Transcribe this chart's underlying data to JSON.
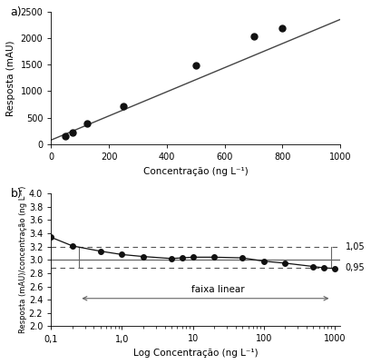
{
  "panel_a": {
    "x_data": [
      50,
      75,
      125,
      250,
      500,
      700,
      800
    ],
    "y_data": [
      150,
      220,
      390,
      720,
      1490,
      2030,
      2190
    ],
    "fit_x": [
      0,
      1000
    ],
    "fit_y": [
      80,
      2350
    ],
    "xlabel": "Concentração (ng L⁻¹)",
    "ylabel": "Resposta (mAU)",
    "xlim": [
      0,
      1000
    ],
    "ylim": [
      0,
      2500
    ],
    "xticks": [
      0,
      200,
      400,
      600,
      800,
      1000
    ],
    "yticks": [
      0,
      500,
      1000,
      1500,
      2000,
      2500
    ]
  },
  "panel_b": {
    "x_data": [
      0.1,
      0.2,
      0.5,
      1.0,
      2.0,
      5.0,
      7.0,
      10.0,
      20.0,
      50.0,
      100.0,
      200.0,
      500.0,
      700.0,
      1000.0
    ],
    "y_data": [
      3.34,
      3.21,
      3.13,
      3.08,
      3.05,
      3.02,
      3.03,
      3.04,
      3.04,
      3.03,
      2.98,
      2.95,
      2.9,
      2.88,
      2.87
    ],
    "mean_line": 3.0,
    "upper_dashed": 3.2,
    "lower_dashed": 2.88,
    "label_upper": "1,05",
    "label_lower": "0,95",
    "faixa_label": "faixa linear",
    "faixa_x_start": 0.25,
    "faixa_x_end": 900,
    "faixa_y": 2.42,
    "vline_x_start": 0.25,
    "vline_x_end": 900,
    "xlabel": "Log Concentração (ng L⁻¹)",
    "ylabel": "Resposta (mAU)/concentração (ng L⁻¹)",
    "xlim": [
      0.1,
      1200
    ],
    "ylim": [
      2.0,
      4.0
    ],
    "yticks": [
      2.0,
      2.2,
      2.4,
      2.6,
      2.8,
      3.0,
      3.2,
      3.4,
      3.6,
      3.8,
      4.0
    ],
    "xtick_locs": [
      0.1,
      1.0,
      10.0,
      100.0,
      1000.0
    ],
    "xtick_labels": [
      "0,1",
      "1,0",
      "10",
      "100",
      "1000"
    ]
  },
  "label_a": "a)",
  "label_b": "b)",
  "bg_color": "#ffffff",
  "line_color": "#444444",
  "dot_color": "#111111",
  "dashed_color": "#555555",
  "solid_line_color": "#666666"
}
